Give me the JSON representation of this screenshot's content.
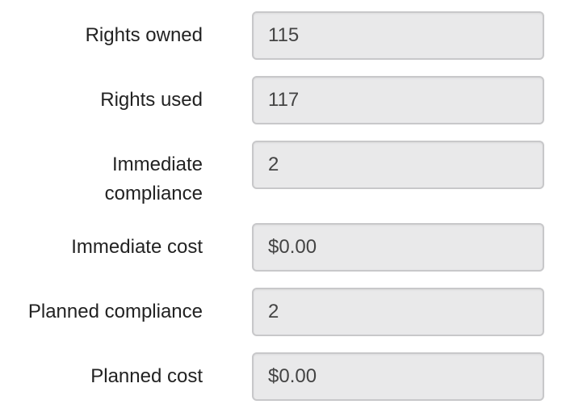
{
  "form": {
    "fields": [
      {
        "label": "Rights owned",
        "value": "115"
      },
      {
        "label": "Rights used",
        "value": "117"
      },
      {
        "label": "Immediate compliance",
        "value": "2"
      },
      {
        "label": "Immediate cost",
        "value": "$0.00"
      },
      {
        "label": "Planned compliance",
        "value": "2"
      },
      {
        "label": "Planned cost",
        "value": "$0.00"
      }
    ]
  }
}
